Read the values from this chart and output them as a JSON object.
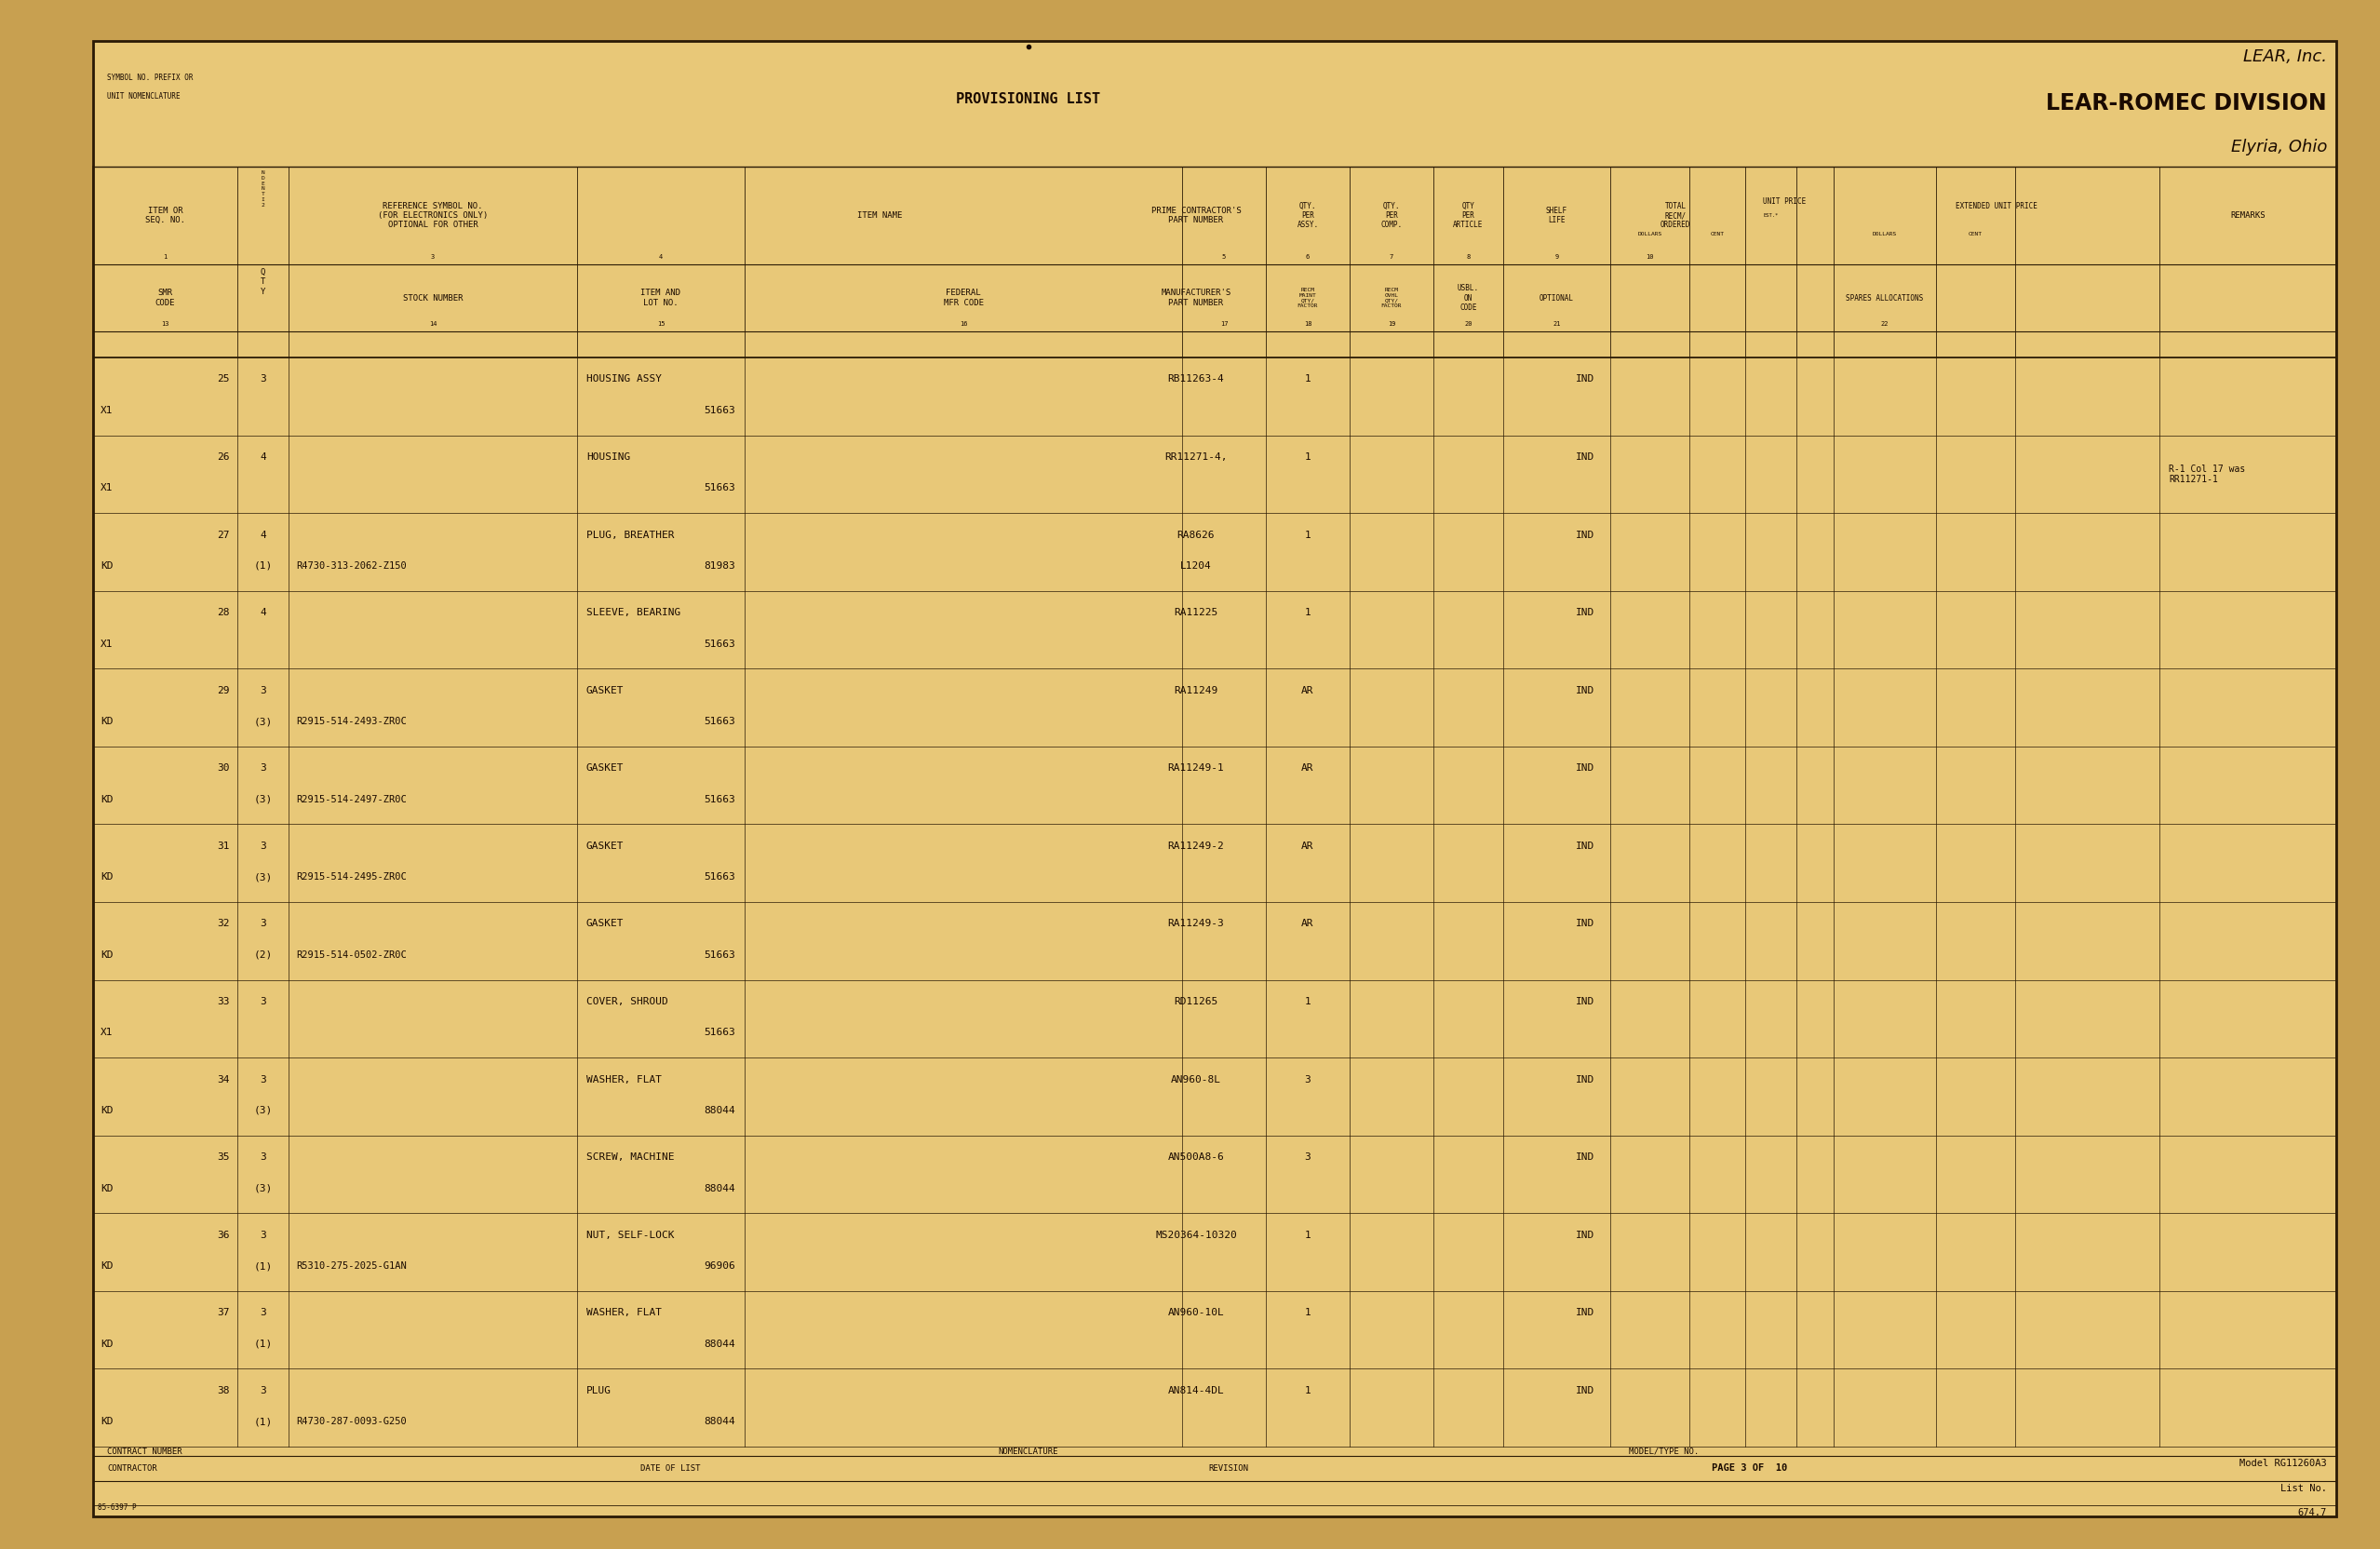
{
  "bg_color": "#C8A050",
  "paper_color": "#E8C878",
  "inner_paper_color": "#DFC080",
  "border_color": "#2A1A05",
  "text_color": "#1A0A00",
  "title_lear": "LEAR, Inc.",
  "title_division": "LEAR-ROMEC DIVISION",
  "title_location": "Elyria, Ohio",
  "title_prov": "PROVISIONING LIST",
  "symbol_label1": "SYMBOL NO. PREFIX OR",
  "symbol_label2": "UNIT NOMENCLATURE",
  "rows": [
    {
      "item": "25",
      "smr": "X1",
      "nspc_top": "3",
      "nspc_bot": "",
      "ref": "",
      "item_name": "HOUSING ASSY",
      "lot": "51663",
      "part": "RB11263-4",
      "part2": "",
      "qty_assy": "1",
      "shelf_ind": "IND",
      "remarks": ""
    },
    {
      "item": "26",
      "smr": "X1",
      "nspc_top": "4",
      "nspc_bot": "",
      "ref": "",
      "item_name": "HOUSING",
      "lot": "51663",
      "part": "RR11271-4,",
      "part2": "",
      "qty_assy": "1",
      "shelf_ind": "IND",
      "remarks": "R-1 Col 17 was\nRR11271-1"
    },
    {
      "item": "27",
      "smr": "KD",
      "nspc_top": "4",
      "nspc_bot": "(1)",
      "ref": "R4730-313-2062-Z150",
      "item_name": "PLUG, BREATHER",
      "lot": "81983",
      "part": "RA8626",
      "part2": "L1204",
      "qty_assy": "1",
      "shelf_ind": "IND",
      "remarks": ""
    },
    {
      "item": "28",
      "smr": "X1",
      "nspc_top": "4",
      "nspc_bot": "",
      "ref": "",
      "item_name": "SLEEVE, BEARING",
      "lot": "51663",
      "part": "RA11225",
      "part2": "",
      "qty_assy": "1",
      "shelf_ind": "IND",
      "remarks": ""
    },
    {
      "item": "29",
      "smr": "KD",
      "nspc_top": "3",
      "nspc_bot": "(3)",
      "ref": "R2915-514-2493-ZR0C",
      "item_name": "GASKET",
      "lot": "51663",
      "part": "RA11249",
      "part2": "",
      "qty_assy": "AR",
      "shelf_ind": "IND",
      "remarks": ""
    },
    {
      "item": "30",
      "smr": "KD",
      "nspc_top": "3",
      "nspc_bot": "(3)",
      "ref": "R2915-514-2497-ZR0C",
      "item_name": "GASKET",
      "lot": "51663",
      "part": "RA11249-1",
      "part2": "",
      "qty_assy": "AR",
      "shelf_ind": "IND",
      "remarks": ""
    },
    {
      "item": "31",
      "smr": "KD",
      "nspc_top": "3",
      "nspc_bot": "(3)",
      "ref": "R2915-514-2495-ZR0C",
      "item_name": "GASKET",
      "lot": "51663",
      "part": "RA11249-2",
      "part2": "",
      "qty_assy": "AR",
      "shelf_ind": "IND",
      "remarks": ""
    },
    {
      "item": "32",
      "smr": "KD",
      "nspc_top": "3",
      "nspc_bot": "(2)",
      "ref": "R2915-514-0502-ZR0C",
      "item_name": "GASKET",
      "lot": "51663",
      "part": "RA11249-3",
      "part2": "",
      "qty_assy": "AR",
      "shelf_ind": "IND",
      "remarks": ""
    },
    {
      "item": "33",
      "smr": "X1",
      "nspc_top": "3",
      "nspc_bot": "",
      "ref": "",
      "item_name": "COVER, SHROUD",
      "lot": "51663",
      "part": "RD11265",
      "part2": "",
      "qty_assy": "1",
      "shelf_ind": "IND",
      "remarks": ""
    },
    {
      "item": "34",
      "smr": "KD",
      "nspc_top": "3",
      "nspc_bot": "(3)",
      "ref": "",
      "item_name": "WASHER, FLAT",
      "lot": "88044",
      "part": "AN960-8L",
      "part2": "",
      "qty_assy": "3",
      "shelf_ind": "IND",
      "remarks": ""
    },
    {
      "item": "35",
      "smr": "KD",
      "nspc_top": "3",
      "nspc_bot": "(3)",
      "ref": "",
      "item_name": "SCREW, MACHINE",
      "lot": "88044",
      "part": "AN500A8-6",
      "part2": "",
      "qty_assy": "3",
      "shelf_ind": "IND",
      "remarks": ""
    },
    {
      "item": "36",
      "smr": "KD",
      "nspc_top": "3",
      "nspc_bot": "(1)",
      "ref": "R5310-275-2025-G1AN",
      "item_name": "NUT, SELF-LOCK",
      "lot": "96906",
      "part": "MS20364-10320",
      "part2": "",
      "qty_assy": "1",
      "shelf_ind": "IND",
      "remarks": ""
    },
    {
      "item": "37",
      "smr": "KD",
      "nspc_top": "3",
      "nspc_bot": "(1)",
      "ref": "",
      "item_name": "WASHER, FLAT",
      "lot": "88044",
      "part": "AN960-10L",
      "part2": "",
      "qty_assy": "1",
      "shelf_ind": "IND",
      "remarks": ""
    },
    {
      "item": "38",
      "smr": "KD",
      "nspc_top": "3",
      "nspc_bot": "(1)",
      "ref": "R4730-287-0093-G250",
      "item_name": "PLUG",
      "lot": "88044",
      "part": "AN814-4DL",
      "part2": "",
      "qty_assy": "1",
      "shelf_ind": "IND",
      "remarks": ""
    }
  ],
  "footer": {
    "contract_number_label": "CONTRACT NUMBER",
    "nomenclature_label": "NOMENCLATURE",
    "model_type_label": "MODEL/TYPE NO.",
    "contractor_label": "CONTRACTOR",
    "date_label": "DATE OF LIST",
    "revision_label": "REVISION",
    "page_label": "PAGE 3 OF  10",
    "model_line1": "Model RG11260A3",
    "model_line2": "List No.",
    "model_line3": "674.7",
    "form_number": "85-6397 P"
  }
}
